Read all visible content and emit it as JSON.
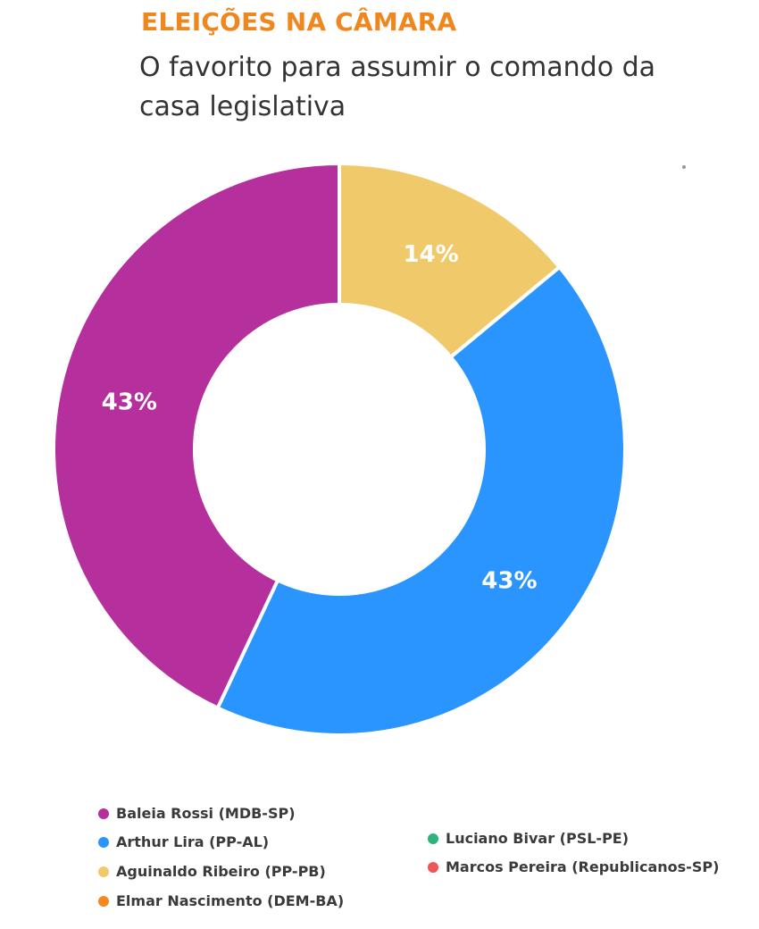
{
  "header": {
    "title": "ELEIÇÕES NA CÂMARA",
    "subtitle": "O favorito para assumir o comando da casa legislativa"
  },
  "colors": {
    "title": "#f0861e",
    "label": "#ffffff",
    "separator": "#ffffff"
  },
  "chart_data": {
    "type": "pie",
    "donut": true,
    "title": "ELEIÇÕES NA CÂMARA",
    "subtitle": "O favorito para assumir o comando da casa legislativa",
    "unit": "%",
    "slices": [
      {
        "name": "Aguinaldo Ribeiro (PP-PB)",
        "value": 14,
        "label": "14%",
        "color": "#f0c96a"
      },
      {
        "name": "Arthur Lira (PP-AL)",
        "value": 43,
        "label": "43%",
        "color": "#2b95ff"
      },
      {
        "name": "Baleia Rossi (MDB-SP)",
        "value": 43,
        "label": "43%",
        "color": "#b5309c"
      }
    ],
    "legend": [
      {
        "name": "Baleia Rossi (MDB-SP)",
        "color": "#b5309c"
      },
      {
        "name": "Arthur Lira (PP-AL)",
        "color": "#2b95ff"
      },
      {
        "name": "Aguinaldo Ribeiro (PP-PB)",
        "color": "#f0c96a"
      },
      {
        "name": "Elmar Nascimento (DEM-BA)",
        "color": "#f7881f"
      },
      {
        "name": "Luciano Bivar (PSL-PE)",
        "color": "#2eb37a"
      },
      {
        "name": "Marcos Pereira (Republicanos-SP)",
        "color": "#f25555"
      }
    ],
    "legend_placement": "bottom"
  }
}
